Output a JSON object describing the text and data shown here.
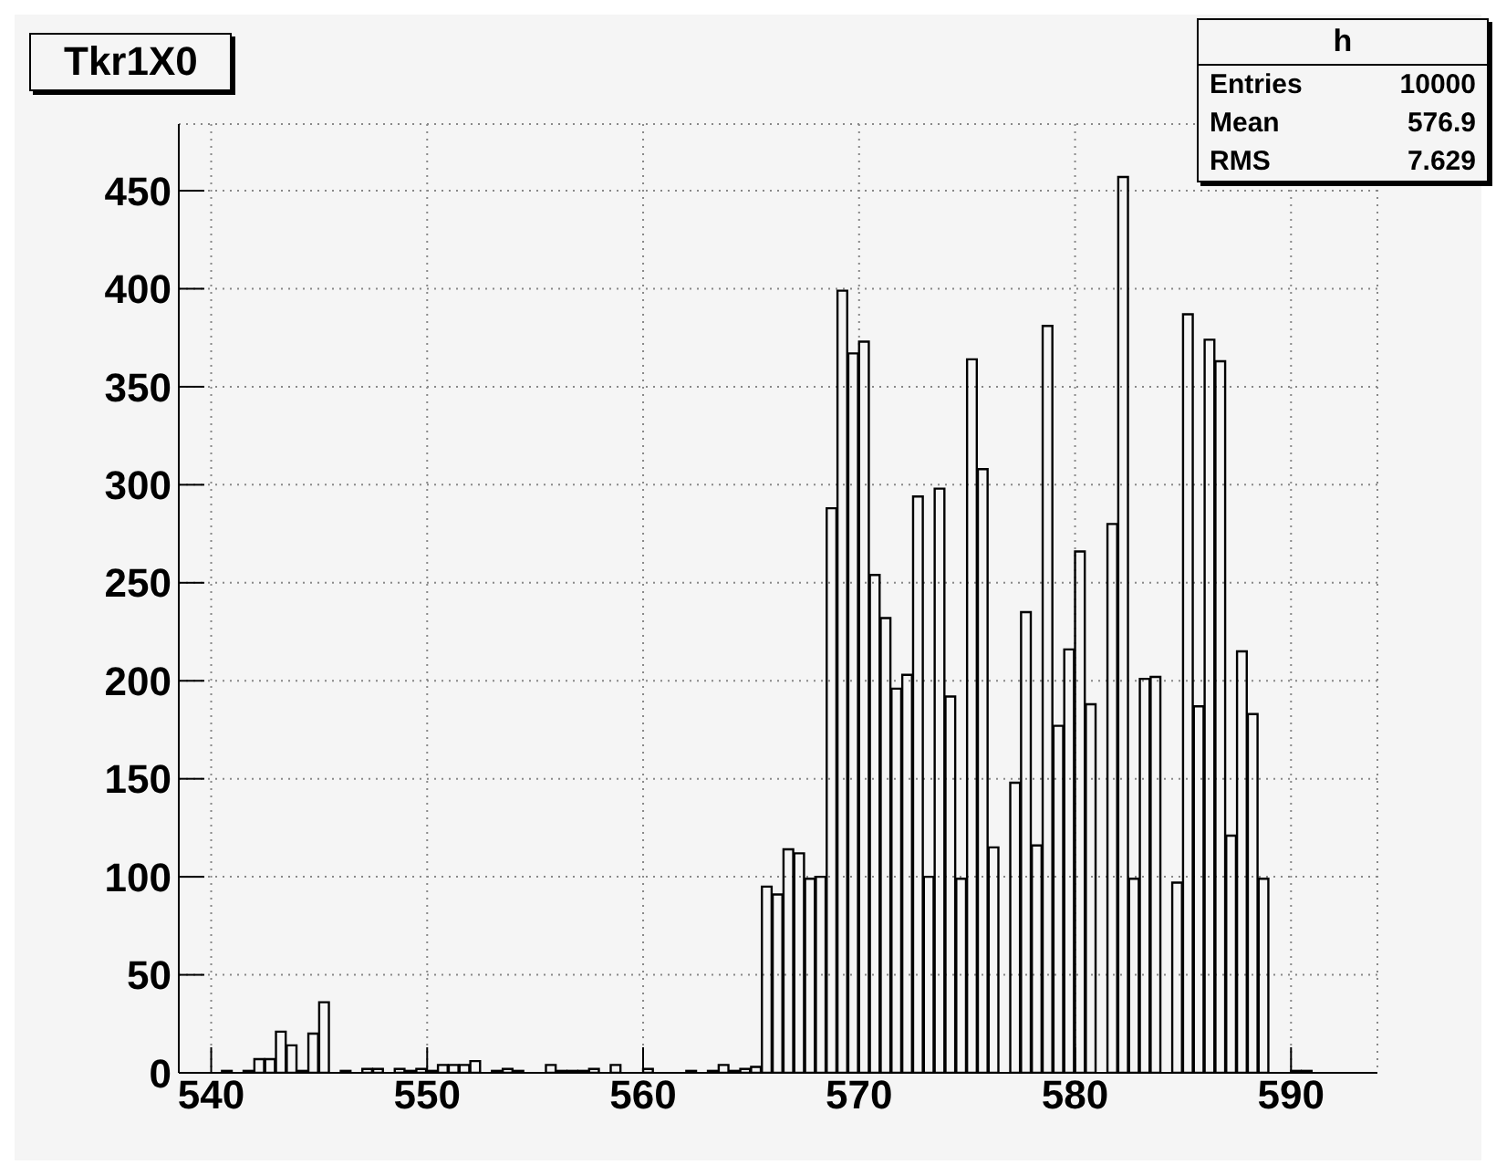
{
  "chart_data": {
    "type": "histogram",
    "title": "Tkr1X0",
    "annotations": [
      "h",
      "Entries",
      "10000",
      "Mean",
      "576.9",
      "RMS",
      "7.629"
    ],
    "bins": [
      538.5,
      539,
      539.5,
      540,
      540.5,
      541,
      541.5,
      542,
      542.5,
      543,
      543.5,
      544,
      544.5,
      545,
      545.5,
      546,
      546.5,
      547,
      547.5,
      548,
      548.5,
      549,
      549.5,
      550,
      550.5,
      551,
      551.5,
      552,
      552.5,
      553,
      553.5,
      554,
      554.5,
      555,
      555.5,
      556,
      556.5,
      557,
      557.5,
      558,
      558.5,
      559,
      559.5,
      560,
      560.5,
      561,
      561.5,
      562,
      562.5,
      563,
      563.5,
      564,
      564.5,
      565,
      565.5,
      566,
      566.5,
      567,
      567.5,
      568,
      568.5,
      569,
      569.5,
      570,
      570.5,
      571,
      571.5,
      572,
      572.5,
      573,
      573.5,
      574,
      574.5,
      575,
      575.5,
      576,
      576.5,
      577,
      577.5,
      578,
      578.5,
      579,
      579.5,
      580,
      580.5,
      581,
      581.5,
      582,
      582.5,
      583,
      583.5,
      584,
      584.5,
      585,
      585.5,
      586,
      586.5,
      587,
      587.5,
      588,
      588.5,
      589,
      589.5,
      590,
      590.5,
      591
    ],
    "values": [
      0,
      0,
      0,
      0,
      1,
      0,
      1,
      7,
      7,
      21,
      14,
      1,
      20,
      36,
      0,
      1,
      0,
      2,
      2,
      0,
      2,
      1,
      2,
      1,
      4,
      4,
      4,
      6,
      0,
      1,
      2,
      1,
      0,
      0,
      4,
      1,
      1,
      1,
      2,
      0,
      4,
      0,
      0,
      2,
      0,
      0,
      0,
      1,
      0,
      1,
      4,
      1,
      2,
      3,
      95,
      91,
      114,
      112,
      99,
      100,
      288,
      399,
      367,
      373,
      254,
      232,
      196,
      203,
      294,
      100,
      298,
      192,
      99,
      364,
      308,
      115,
      0,
      148,
      235,
      116,
      381,
      177,
      216,
      266,
      188,
      0,
      280,
      457,
      99,
      201,
      202,
      0,
      97,
      387,
      187,
      374,
      363,
      121,
      215,
      183,
      99,
      0,
      0,
      1,
      1
    ],
    "color": "#000000",
    "xlim": [
      538.5,
      594
    ],
    "xticks": [
      540,
      550,
      560,
      570,
      580,
      590
    ],
    "ylim": [
      0,
      484
    ],
    "yticks": [
      0,
      50,
      100,
      150,
      200,
      250,
      300,
      350,
      400,
      450
    ],
    "grid": true
  }
}
